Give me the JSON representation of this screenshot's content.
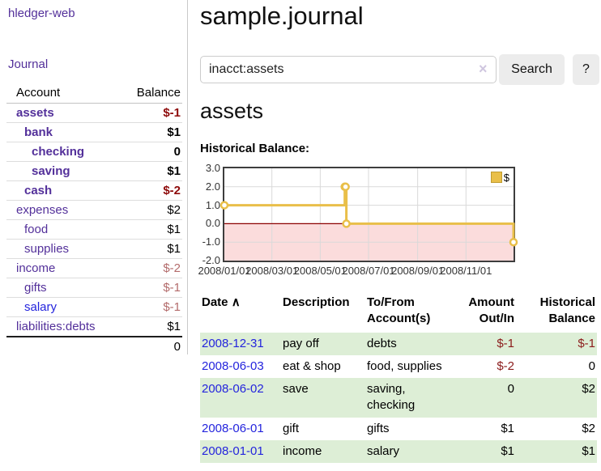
{
  "app": {
    "brand": "hledger-web"
  },
  "nav": {
    "journal": "Journal"
  },
  "sidebar": {
    "headers": {
      "account": "Account",
      "balance": "Balance"
    },
    "rows": [
      {
        "name": "assets",
        "balance": "$-1"
      },
      {
        "name": "bank",
        "balance": "$1"
      },
      {
        "name": "checking",
        "balance": "0"
      },
      {
        "name": "saving",
        "balance": "$1"
      },
      {
        "name": "cash",
        "balance": "$-2"
      },
      {
        "name": "expenses",
        "balance": "$2"
      },
      {
        "name": "food",
        "balance": "$1"
      },
      {
        "name": "supplies",
        "balance": "$1"
      },
      {
        "name": "income",
        "balance": "$-2"
      },
      {
        "name": "gifts",
        "balance": "$-1"
      },
      {
        "name": "salary",
        "balance": "$-1"
      },
      {
        "name": "liabilities:debts",
        "balance": "$1"
      }
    ],
    "total": "0"
  },
  "header": {
    "title": "sample.journal"
  },
  "search": {
    "value": "inacct:assets",
    "clear_icon": "×",
    "search_label": "Search",
    "help_label": "?"
  },
  "account_view": {
    "heading": "assets",
    "chart_title": "Historical Balance:"
  },
  "chart_data": {
    "type": "line",
    "step": true,
    "title": "Historical Balance:",
    "x_range": [
      "2008-01-01",
      "2008-12-31"
    ],
    "ylim": [
      -2,
      3
    ],
    "yticks": [
      "3.0",
      "2.0",
      "1.0",
      "0.0",
      "-1.0",
      "-2.0"
    ],
    "xticks": [
      {
        "label": "2008/01/01",
        "date": "2008-01-01"
      },
      {
        "label": "2008/03/01",
        "date": "2008-03-01"
      },
      {
        "label": "2008/05/01",
        "date": "2008-05-01"
      },
      {
        "label": "2008/07/01",
        "date": "2008-07-01"
      },
      {
        "label": "2008/09/01",
        "date": "2008-09-01"
      },
      {
        "label": "2008/11/01",
        "date": "2008-11-01"
      }
    ],
    "grid_y": [
      2,
      1,
      -1
    ],
    "series": [
      {
        "name": "$",
        "color": "#e9bf49",
        "points": [
          [
            "2008-01-01",
            1
          ],
          [
            "2008-06-01",
            2
          ],
          [
            "2008-06-02",
            2
          ],
          [
            "2008-06-03",
            0
          ],
          [
            "2008-12-31",
            -1
          ]
        ]
      }
    ],
    "legend": {
      "label": "$",
      "position": "top-right"
    },
    "negative_fill": "#fbdcdc",
    "zero_line_color": "#8b0000",
    "grid_color": "#d9d9d9"
  },
  "register": {
    "headers": {
      "date": "Date",
      "sort_icon": "∧",
      "description": "Description",
      "accounts": "To/From Account(s)",
      "amount": "Amount Out/In",
      "balance": "Historical Balance"
    },
    "rows": [
      {
        "date": "2008-12-31",
        "description": "pay off",
        "accounts": "debts",
        "amount": "$-1",
        "balance": "$-1"
      },
      {
        "date": "2008-06-03",
        "description": "eat & shop",
        "accounts": "food, supplies",
        "amount": "$-2",
        "balance": "0"
      },
      {
        "date": "2008-06-02",
        "description": "save",
        "accounts": "saving, checking",
        "amount": "0",
        "balance": "$2"
      },
      {
        "date": "2008-06-01",
        "description": "gift",
        "accounts": "gifts",
        "amount": "$1",
        "balance": "$2"
      },
      {
        "date": "2008-01-01",
        "description": "income",
        "accounts": "salary",
        "amount": "$1",
        "balance": "$1"
      }
    ]
  },
  "colors": {
    "link_purple": "#53309a",
    "link_blue": "#2424dd",
    "negative_strong": "#8e0b0b",
    "negative_muted": "#b36b6b",
    "negative_register": "#8b1b1b",
    "row_stripe_green": "#ddeed6",
    "button_gray": "#ececec"
  }
}
